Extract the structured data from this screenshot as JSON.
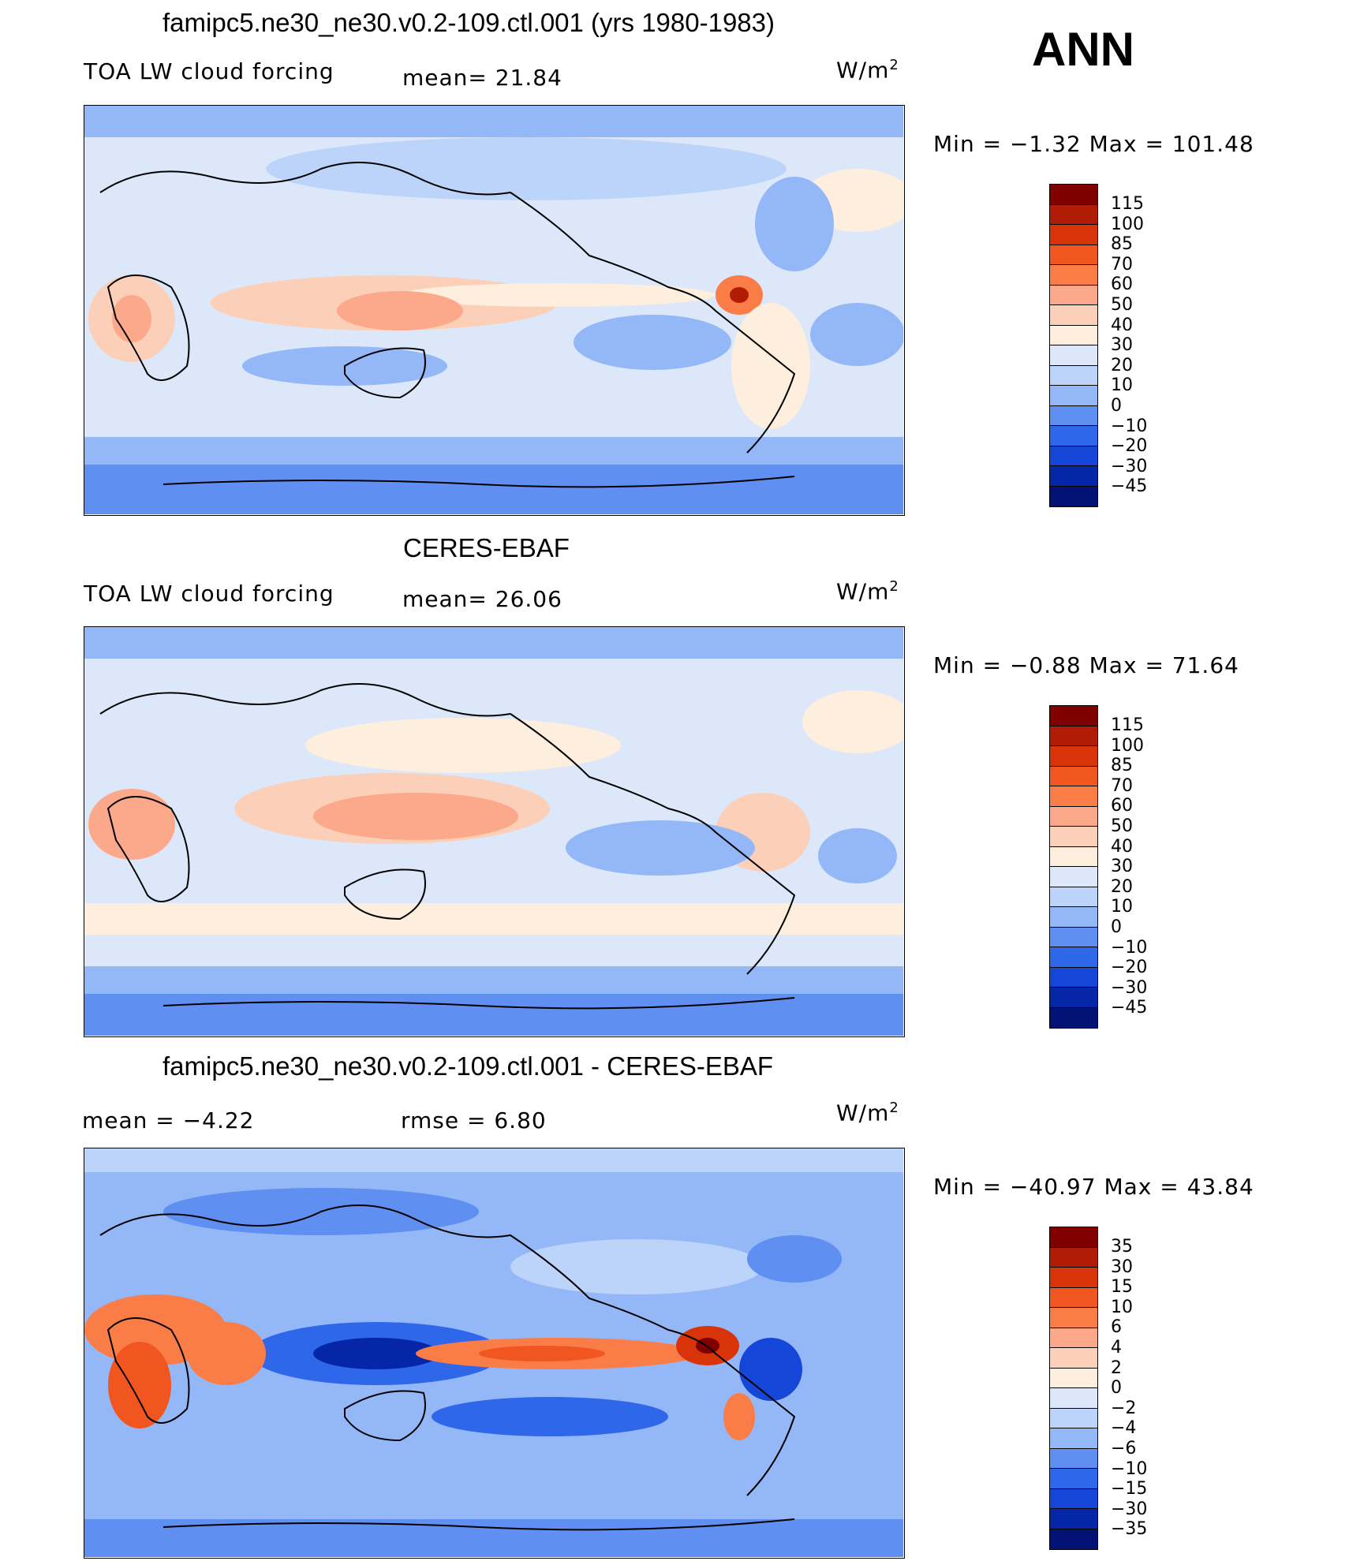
{
  "season": "ANN",
  "panels": [
    {
      "title": "famipc5.ne30_ne30.v0.2-109.ctl.001 (yrs 1980-1983)",
      "left_label": "TOA LW cloud forcing",
      "mid_label": "mean=   21.84",
      "units": "W/m",
      "units_exp": "2",
      "minmax": "Min  =   −1.32  Max  =  101.48",
      "levels": [
        "115",
        "100",
        "85",
        "70",
        "60",
        "50",
        "40",
        "30",
        "20",
        "10",
        "0",
        "−10",
        "−20",
        "−30",
        "−45"
      ]
    },
    {
      "title": "CERES-EBAF",
      "left_label": "TOA LW cloud forcing",
      "mid_label": "mean=   26.06",
      "units": "W/m",
      "units_exp": "2",
      "minmax": "Min  =   −0.88  Max  =   71.64",
      "levels": [
        "115",
        "100",
        "85",
        "70",
        "60",
        "50",
        "40",
        "30",
        "20",
        "10",
        "0",
        "−10",
        "−20",
        "−30",
        "−45"
      ]
    },
    {
      "title": "famipc5.ne30_ne30.v0.2-109.ctl.001 - CERES-EBAF",
      "left_label": "mean  =    −4.22",
      "mid_label": "rmse  =     6.80",
      "units": "W/m",
      "units_exp": "2",
      "minmax": "Min  = −40.97  Max  =   43.84",
      "levels": [
        "35",
        "30",
        "15",
        "10",
        "6",
        "4",
        "2",
        "0",
        "−2",
        "−4",
        "−6",
        "−10",
        "−15",
        "−30",
        "−35"
      ]
    }
  ],
  "colors": {
    "scale": [
      "#800000",
      "#b01c05",
      "#d9330a",
      "#f25620",
      "#fa7d48",
      "#fca88a",
      "#fcd0b8",
      "#fdeedd",
      "#dce8fa",
      "#bcd3fa",
      "#94b8f7",
      "#5f8ff0",
      "#2f67ea",
      "#1546d8",
      "#0626a8",
      "#031275"
    ]
  }
}
